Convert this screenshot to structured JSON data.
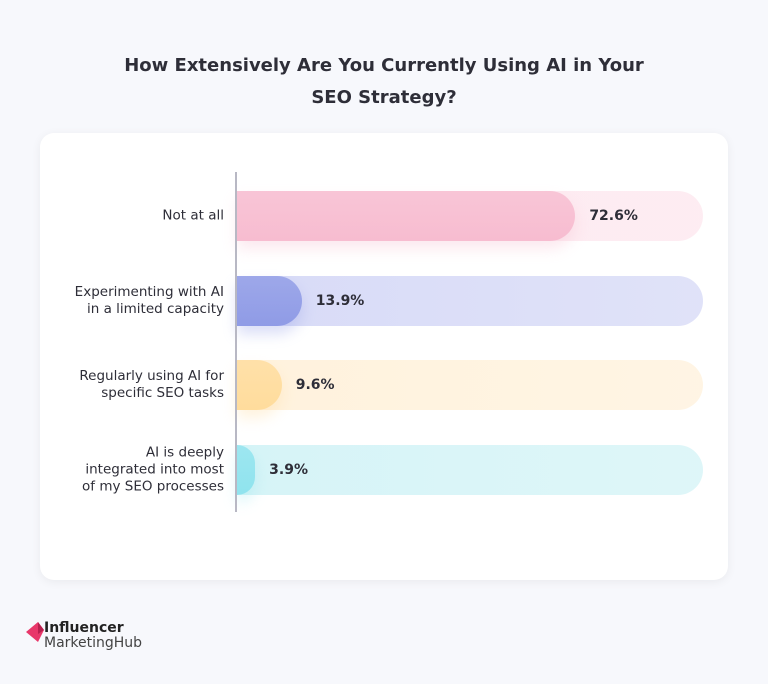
{
  "chart_data": {
    "type": "bar",
    "orientation": "horizontal",
    "title": "How Extensively Are You Currently Using AI in Your SEO Strategy?",
    "title_lines": [
      "How Extensively Are You Currently Using AI in Your",
      "SEO Strategy?"
    ],
    "categories": [
      [
        "Not at all"
      ],
      [
        "Experimenting with AI",
        "in a limited capacity"
      ],
      [
        "Regularly using AI for",
        "specific SEO tasks"
      ],
      [
        "AI is deeply",
        "integrated into most",
        "of my SEO processes"
      ]
    ],
    "values": [
      72.6,
      13.9,
      9.6,
      3.9
    ],
    "value_labels": [
      "72.6%",
      "13.9%",
      "9.6%",
      "3.9%"
    ],
    "xlim": [
      0,
      100
    ],
    "unit": "%",
    "grid": false,
    "colors": [
      {
        "fill": "#f7bcd0",
        "track": "#fde8ef"
      },
      {
        "fill": "#8f9be6",
        "track": "#d8dbf7"
      },
      {
        "fill": "#ffdc9c",
        "track": "#fff2dd"
      },
      {
        "fill": "#8fe3ee",
        "track": "#d6f4f7"
      }
    ]
  },
  "brand": {
    "line1": "Influencer",
    "line2": "MarketingHub",
    "color": "#e8376a"
  }
}
